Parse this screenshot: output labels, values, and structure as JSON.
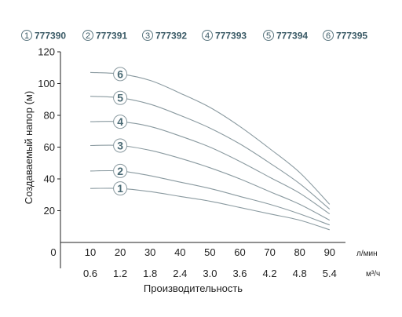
{
  "chart_data": {
    "type": "line",
    "title": "",
    "legend": [
      {
        "num": "1",
        "label": "777390"
      },
      {
        "num": "2",
        "label": "777391"
      },
      {
        "num": "3",
        "label": "777392"
      },
      {
        "num": "4",
        "label": "777393"
      },
      {
        "num": "5",
        "label": "777394"
      },
      {
        "num": "6",
        "label": "777395"
      }
    ],
    "legend_position": "top",
    "ylabel": "Создаваемый напор (м)",
    "xlabel": "Производительность",
    "x_unit": "л/мин",
    "x2_unit": "м³/ч",
    "x_ticks": [
      "0",
      "10",
      "20",
      "30",
      "40",
      "50",
      "60",
      "70",
      "80",
      "90"
    ],
    "x2_ticks": [
      "0.6",
      "1.2",
      "1.8",
      "2.4",
      "3.0",
      "3.6",
      "4.2",
      "4.8",
      "5.4"
    ],
    "y_ticks": [
      "20",
      "40",
      "60",
      "80",
      "100",
      "120"
    ],
    "xlim": [
      0,
      90
    ],
    "ylim": [
      0,
      120
    ],
    "grid": false,
    "line_color": "#8a9aa0",
    "marker_color": "#4a6a74",
    "x": [
      10,
      20,
      30,
      40,
      50,
      60,
      70,
      80,
      90
    ],
    "series": [
      {
        "name": "1",
        "values": [
          34,
          34,
          32,
          29,
          26,
          22,
          18,
          14,
          8
        ]
      },
      {
        "name": "2",
        "values": [
          45,
          45,
          42,
          38,
          34,
          29,
          24,
          18,
          11
        ]
      },
      {
        "name": "3",
        "values": [
          61,
          61,
          58,
          53,
          47,
          40,
          32,
          24,
          14
        ]
      },
      {
        "name": "4",
        "values": [
          76,
          76,
          73,
          67,
          60,
          51,
          41,
          31,
          18
        ]
      },
      {
        "name": "5",
        "values": [
          92,
          91,
          87,
          80,
          72,
          62,
          50,
          37,
          21
        ]
      },
      {
        "name": "6",
        "values": [
          107,
          106,
          102,
          94,
          85,
          73,
          59,
          44,
          24
        ]
      }
    ]
  }
}
